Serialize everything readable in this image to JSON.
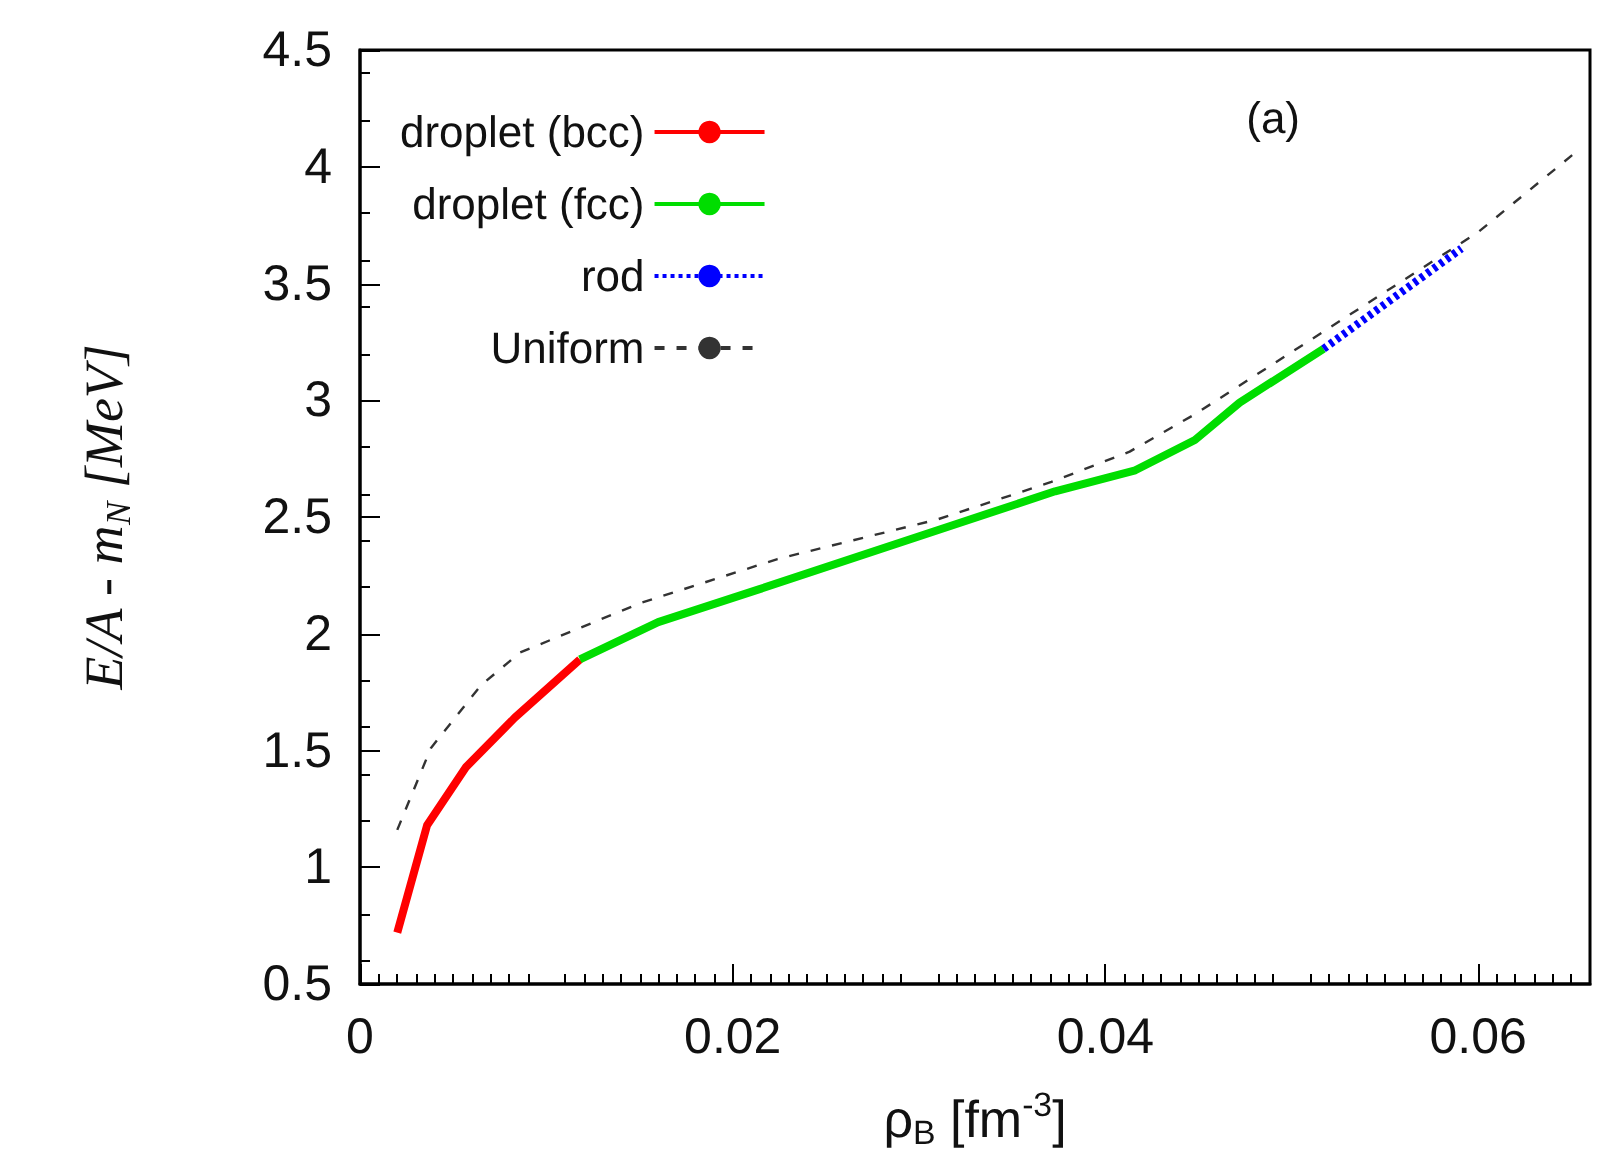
{
  "chart_data": {
    "type": "line",
    "xlabel": "ρ$_{B}$ [fm$^{-3}$]",
    "ylabel": "E/A - m$_{N}$ [MeV]",
    "annotations": [
      "(a)"
    ],
    "xlim": [
      0,
      0.066
    ],
    "xticks": [
      0,
      0.02,
      0.04,
      0.06
    ],
    "ylim": [
      0.5,
      4.5
    ],
    "yticks": [
      0.5,
      1,
      1.5,
      2,
      2.5,
      3,
      3.5,
      4,
      4.5
    ],
    "grid": false,
    "legend": "top left",
    "marker": "none",
    "series": [
      {
        "name": "droplet (bcc)",
        "color": "#ff0000",
        "line_style": "solid",
        "x": [
          0.002,
          0.0036,
          0.0057,
          0.0083,
          0.0118
        ],
        "values": [
          0.72,
          1.18,
          1.43,
          1.64,
          1.89
        ]
      },
      {
        "name": "droplet (fcc)",
        "color": "#00dd00",
        "line_style": "solid",
        "x": [
          0.0118,
          0.016,
          0.0214,
          0.032,
          0.0373,
          0.0416,
          0.0448,
          0.0472,
          0.0517
        ],
        "values": [
          1.89,
          2.05,
          2.19,
          2.47,
          2.61,
          2.7,
          2.83,
          2.99,
          3.22
        ]
      },
      {
        "name": "rod",
        "color": "#0000ff",
        "line_style": "dotted",
        "x": [
          0.0517,
          0.0591
        ],
        "values": [
          3.22,
          3.65
        ]
      },
      {
        "name": "Uniform",
        "color": "#333333",
        "line_style": "dashed",
        "x": [
          0.002,
          0.0038,
          0.0065,
          0.0086,
          0.015,
          0.0224,
          0.031,
          0.0371,
          0.0413,
          0.0448,
          0.06,
          0.0652
        ],
        "values": [
          1.16,
          1.51,
          1.78,
          1.92,
          2.13,
          2.32,
          2.49,
          2.65,
          2.78,
          2.94,
          3.72,
          4.06
        ]
      }
    ]
  }
}
